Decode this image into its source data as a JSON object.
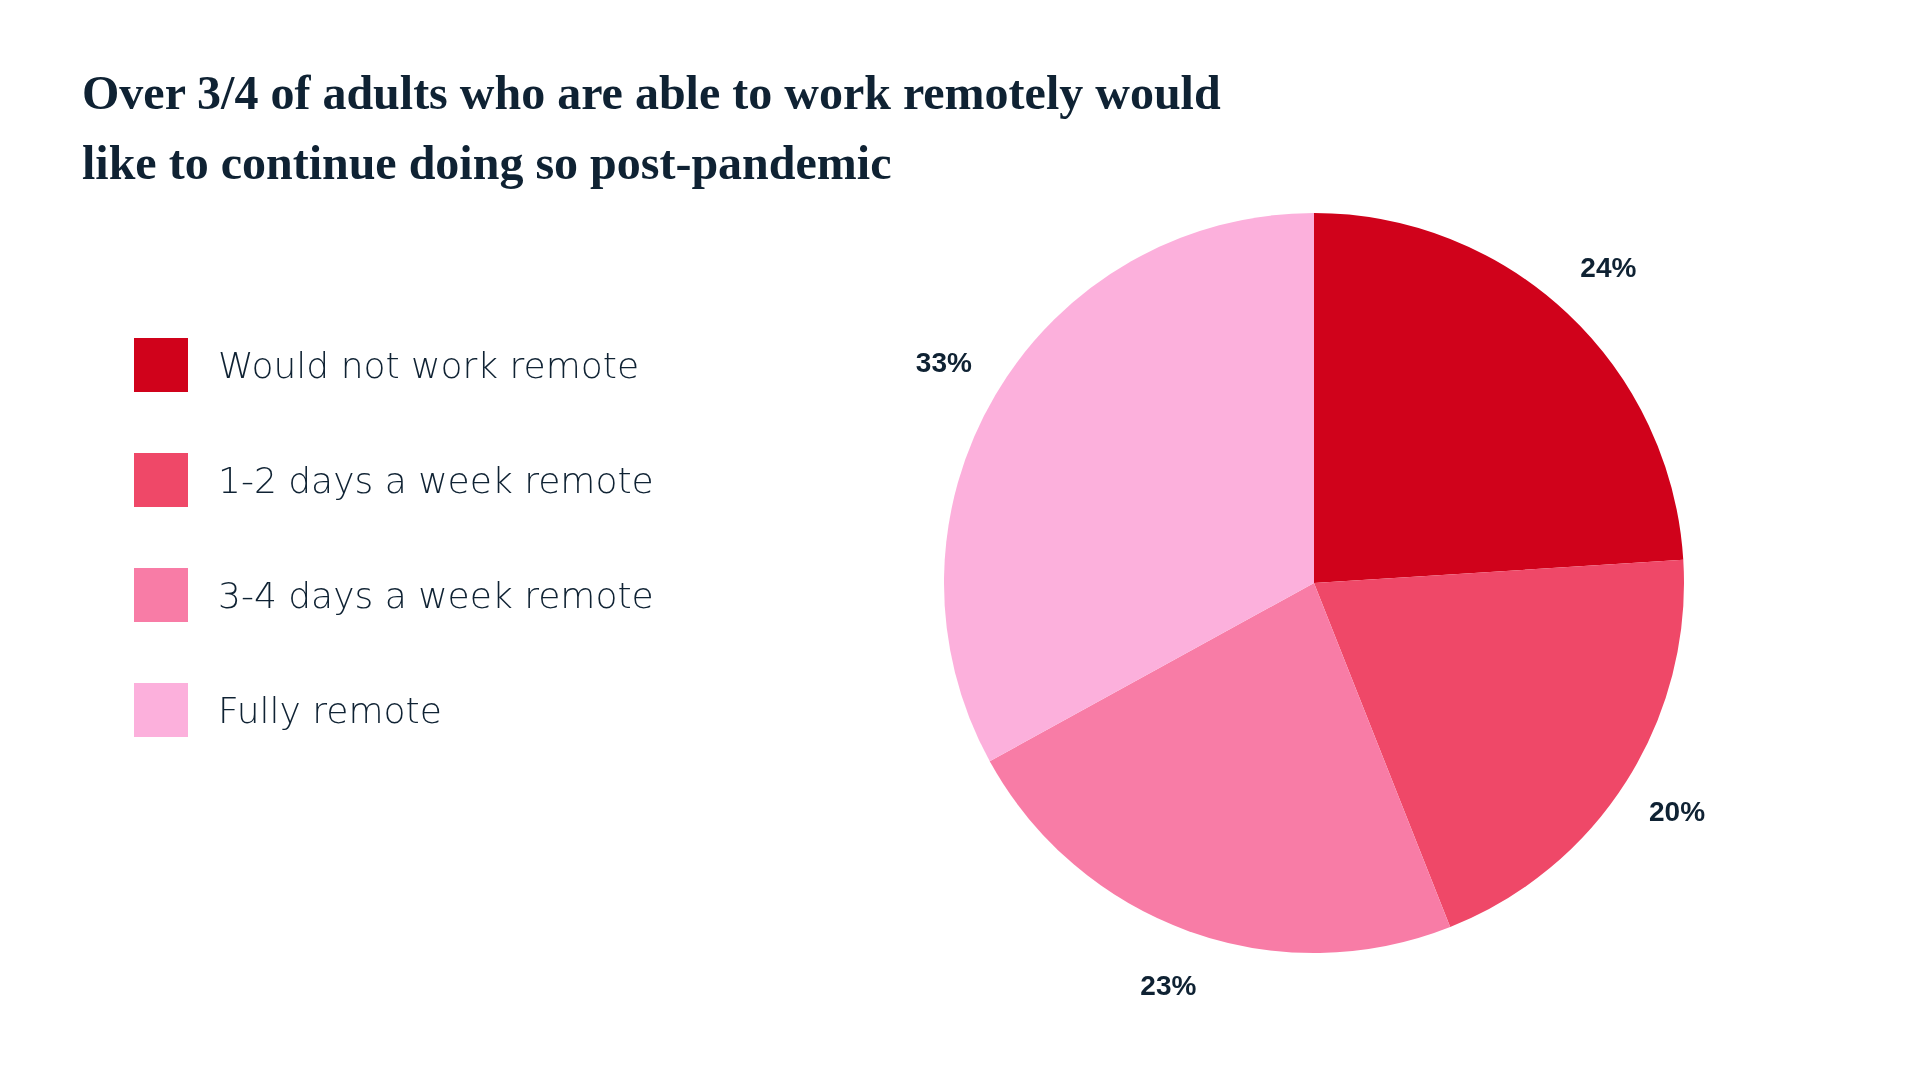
{
  "chart_data": {
    "type": "pie",
    "title": "Over 3/4 of adults who are able to work remotely would like to continue doing so post-pandemic",
    "categories": [
      "Would not work remote",
      "1-2 days a week remote",
      "3-4 days a week remote",
      "Fully remote"
    ],
    "values": [
      24,
      20,
      23,
      33
    ],
    "colors": [
      "#d0021b",
      "#ef4868",
      "#f87ca6",
      "#fcb0dc"
    ],
    "value_labels": [
      "24%",
      "20%",
      "23%",
      "33%"
    ],
    "legend": "left"
  }
}
